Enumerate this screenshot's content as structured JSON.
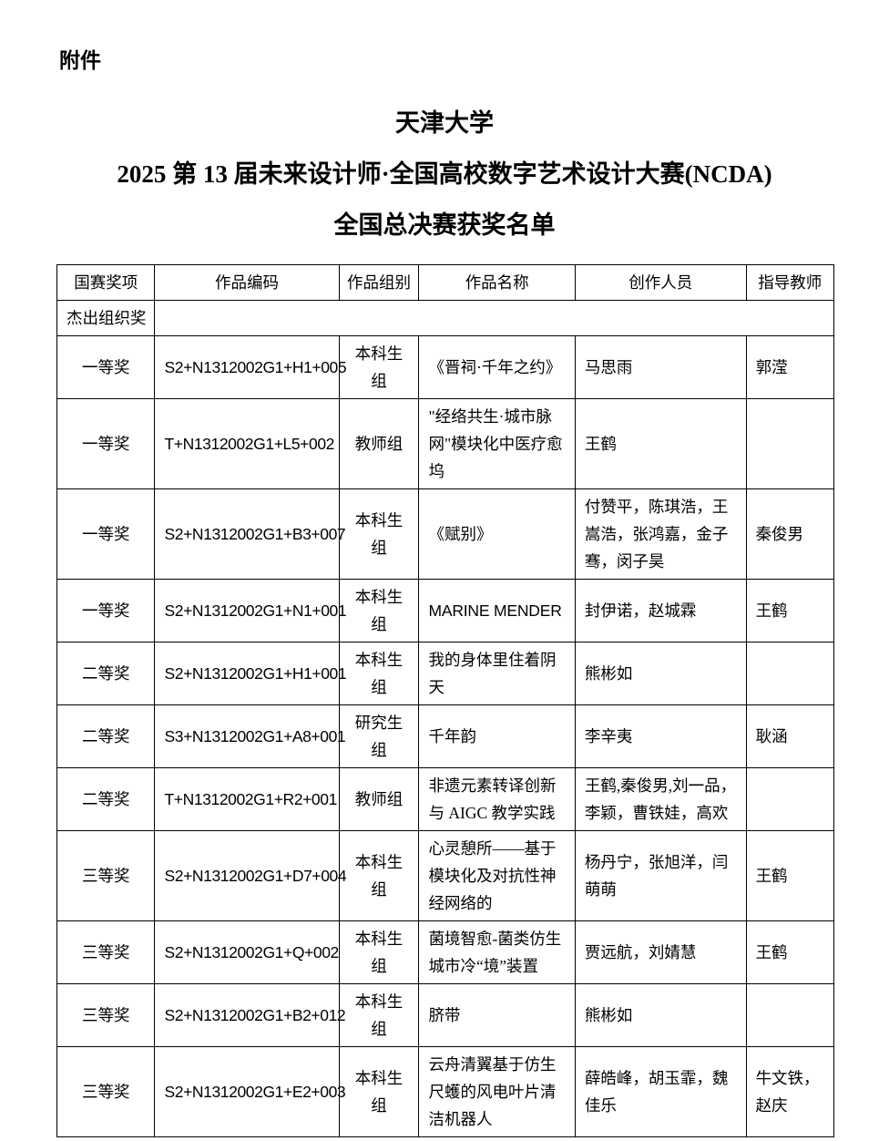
{
  "page": {
    "attachment_label": "附件",
    "title_lines": [
      "天津大学",
      "2025 第 13 届未来设计师·全国高校数字艺术设计大赛(NCDA)",
      "全国总决赛获奖名单"
    ]
  },
  "table": {
    "columns": [
      "国赛奖项",
      "作品编码",
      "作品组别",
      "作品名称",
      "创作人员",
      "指导教师"
    ],
    "special_row": {
      "award": "杰出组织奖"
    },
    "rows": [
      {
        "award": "一等奖",
        "code": "S2+N1312002G1+H1+005",
        "group": "本科生组",
        "title": "《晋祠·千年之约》",
        "creators": "马思雨",
        "advisors": "郭滢"
      },
      {
        "award": "一等奖",
        "code": "T+N1312002G1+L5+002",
        "group": "教师组",
        "title": "\"经络共生·城市脉网\"模块化中医疗愈坞",
        "creators": "王鹤",
        "advisors": ""
      },
      {
        "award": "一等奖",
        "code": "S2+N1312002G1+B3+007",
        "group": "本科生组",
        "title": "《赋别》",
        "creators": "付赞平，陈琪浩，王嵩浩，张鸿嘉，金子骞，闵子昊",
        "advisors": "秦俊男"
      },
      {
        "award": "一等奖",
        "code": "S2+N1312002G1+N1+001",
        "group": "本科生组",
        "title": "MARINE MENDER",
        "creators": "封伊诺，赵城霖",
        "advisors": "王鹤"
      },
      {
        "award": "二等奖",
        "code": "S2+N1312002G1+H1+001",
        "group": "本科生组",
        "title": "我的身体里住着阴天",
        "creators": "熊彬如",
        "advisors": ""
      },
      {
        "award": "二等奖",
        "code": "S3+N1312002G1+A8+001",
        "group": "研究生组",
        "title": "千年韵",
        "creators": "李辛夷",
        "advisors": "耿涵"
      },
      {
        "award": "二等奖",
        "code": "T+N1312002G1+R2+001",
        "group": "教师组",
        "title": "非遗元素转译创新与 AIGC 教学实践",
        "creators": "王鹤,秦俊男,刘一品，李颖，曹铁娃，高欢",
        "advisors": ""
      },
      {
        "award": "三等奖",
        "code": "S2+N1312002G1+D7+004",
        "group": "本科生组",
        "title": "心灵憩所——基于模块化及对抗性神经网络的",
        "creators": "杨丹宁，张旭洋，闫萌萌",
        "advisors": "王鹤"
      },
      {
        "award": "三等奖",
        "code": "S2+N1312002G1+Q+002",
        "group": "本科生组",
        "title": "菌境智愈-菌类仿生城市冷“境”装置",
        "creators": "贾远航，刘婧慧",
        "advisors": "王鹤"
      },
      {
        "award": "三等奖",
        "code": "S2+N1312002G1+B2+012",
        "group": "本科生组",
        "title": "脐带",
        "creators": "熊彬如",
        "advisors": ""
      },
      {
        "award": "三等奖",
        "code": "S2+N1312002G1+E2+003",
        "group": "本科生组",
        "title": "云舟清翼基于仿生尺蠖的风电叶片清洁机器人",
        "creators": "薛皓峰，胡玉霏，魏佳乐",
        "advisors": "牛文铁，赵庆"
      }
    ]
  }
}
